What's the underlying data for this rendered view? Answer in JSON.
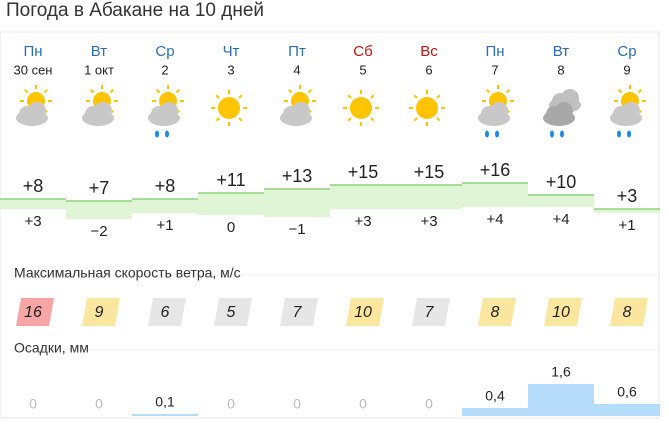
{
  "title": "Погода в Абакане на 10 дней",
  "days": [
    {
      "weekday": "Пн",
      "date": "30 сен",
      "weekend": false,
      "max": 8,
      "max_label": "+8",
      "min": 3,
      "min_label": "+3",
      "wind": 16,
      "wind_color": "#f7a5a5",
      "precip": 0
    },
    {
      "weekday": "Вт",
      "date": "1 окт",
      "weekend": false,
      "max": 7,
      "max_label": "+7",
      "min": -2,
      "min_label": "−2",
      "wind": 9,
      "wind_color": "#fbe6a0",
      "precip": 0
    },
    {
      "weekday": "Ср",
      "date": "2",
      "weekend": false,
      "max": 8,
      "max_label": "+8",
      "min": 1,
      "min_label": "+1",
      "wind": 6,
      "wind_color": "#e6e6e6",
      "precip": 0.1,
      "precip_label": "0,1"
    },
    {
      "weekday": "Чт",
      "date": "3",
      "weekend": false,
      "max": 11,
      "max_label": "+11",
      "min": 0,
      "min_label": "0",
      "wind": 5,
      "wind_color": "#e6e6e6",
      "precip": 0
    },
    {
      "weekday": "Пт",
      "date": "4",
      "weekend": false,
      "max": 13,
      "max_label": "+13",
      "min": -1,
      "min_label": "−1",
      "wind": 7,
      "wind_color": "#e6e6e6",
      "precip": 0
    },
    {
      "weekday": "Сб",
      "date": "5",
      "weekend": true,
      "max": 15,
      "max_label": "+15",
      "min": 3,
      "min_label": "+3",
      "wind": 10,
      "wind_color": "#fbe6a0",
      "precip": 0
    },
    {
      "weekday": "Вс",
      "date": "6",
      "weekend": true,
      "max": 15,
      "max_label": "+15",
      "min": 3,
      "min_label": "+3",
      "wind": 7,
      "wind_color": "#e6e6e6",
      "precip": 0
    },
    {
      "weekday": "Пн",
      "date": "7",
      "weekend": false,
      "max": 16,
      "max_label": "+16",
      "min": 4,
      "min_label": "+4",
      "wind": 8,
      "wind_color": "#fbe6a0",
      "precip": 0.4,
      "precip_label": "0,4"
    },
    {
      "weekday": "Вт",
      "date": "8",
      "weekend": false,
      "max": 10,
      "max_label": "+10",
      "min": 4,
      "min_label": "+4",
      "wind": 10,
      "wind_color": "#fbe6a0",
      "precip": 1.6,
      "precip_label": "1,6"
    },
    {
      "weekday": "Ср",
      "date": "9",
      "weekend": false,
      "max": 3,
      "max_label": "+3",
      "min": 1,
      "min_label": "+1",
      "wind": 8,
      "wind_color": "#fbe6a0",
      "precip": 0.6,
      "precip_label": "0,6"
    }
  ],
  "wind_title": "Максимальная скорость ветра, м/с",
  "precip_title": "Осадки, мм"
}
